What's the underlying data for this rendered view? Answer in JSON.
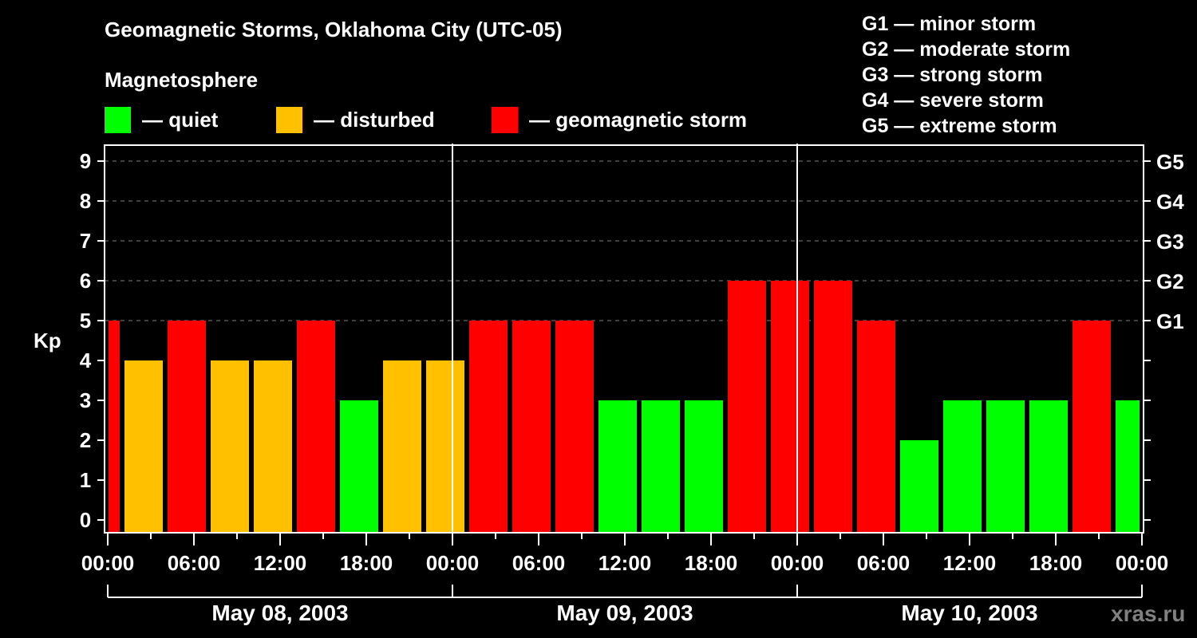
{
  "header": {
    "title": "Geomagnetic Storms, Oklahoma City (UTC-05)",
    "subtitle": "Magnetosphere"
  },
  "legend": [
    {
      "label": "— quiet",
      "color": "#00ff00"
    },
    {
      "label": "— disturbed",
      "color": "#ffc000"
    },
    {
      "label": "— geomagnetic storm",
      "color": "#ff0000"
    }
  ],
  "g_scale": [
    "G1 — minor storm",
    "G2 — moderate storm",
    "G3 — strong storm",
    "G4 — severe storm",
    "G5 — extreme storm"
  ],
  "axes": {
    "ylabel": "Kp",
    "y_ticks": [
      "0",
      "1",
      "2",
      "3",
      "4",
      "5",
      "6",
      "7",
      "8",
      "9"
    ],
    "right_ticks": [
      "G1",
      "G2",
      "G3",
      "G4",
      "G5"
    ],
    "x_ticks": [
      "00:00",
      "06:00",
      "12:00",
      "18:00",
      "00:00",
      "06:00",
      "12:00",
      "18:00",
      "00:00",
      "06:00",
      "12:00",
      "18:00",
      "00:00"
    ],
    "dates": [
      "May 08, 2003",
      "May 09, 2003",
      "May 10, 2003"
    ]
  },
  "watermark": "xras.ru",
  "colors": {
    "quiet": "#00ff00",
    "disturbed": "#ffc000",
    "storm": "#ff0000",
    "grid": "#808080"
  },
  "chart_data": {
    "type": "bar",
    "title": "Geomagnetic Storms, Oklahoma City (UTC-05)",
    "xlabel": "",
    "ylabel": "Kp",
    "ylim": [
      0,
      9
    ],
    "grid": "dashed horizontal at Kp 5-9",
    "legend_position": "top",
    "interval_hours": 3,
    "categories": [
      "May 08 ~00:00",
      "May 08 02:00",
      "May 08 05:00",
      "May 08 08:00",
      "May 08 11:00",
      "May 08 14:00",
      "May 08 17:00",
      "May 08 20:00",
      "May 08 23:00",
      "May 09 02:00",
      "May 09 05:00",
      "May 09 08:00",
      "May 09 11:00",
      "May 09 14:00",
      "May 09 17:00",
      "May 09 20:00",
      "May 09 23:00",
      "May 10 02:00",
      "May 10 05:00",
      "May 10 08:00",
      "May 10 11:00",
      "May 10 14:00",
      "May 10 17:00",
      "May 10 20:00",
      "May 10 23:00"
    ],
    "values": [
      5,
      4,
      5,
      4,
      4,
      5,
      3,
      4,
      4,
      5,
      5,
      5,
      3,
      3,
      3,
      6,
      6,
      6,
      5,
      2,
      3,
      3,
      3,
      5,
      3
    ],
    "status": [
      "storm",
      "disturbed",
      "storm",
      "disturbed",
      "disturbed",
      "storm",
      "quiet",
      "disturbed",
      "disturbed",
      "storm",
      "storm",
      "storm",
      "quiet",
      "quiet",
      "quiet",
      "storm",
      "storm",
      "storm",
      "storm",
      "quiet",
      "quiet",
      "quiet",
      "quiet",
      "storm",
      "quiet"
    ],
    "g_levels": {
      "G1": 5,
      "G2": 6,
      "G3": 7,
      "G4": 8,
      "G5": 9
    }
  }
}
